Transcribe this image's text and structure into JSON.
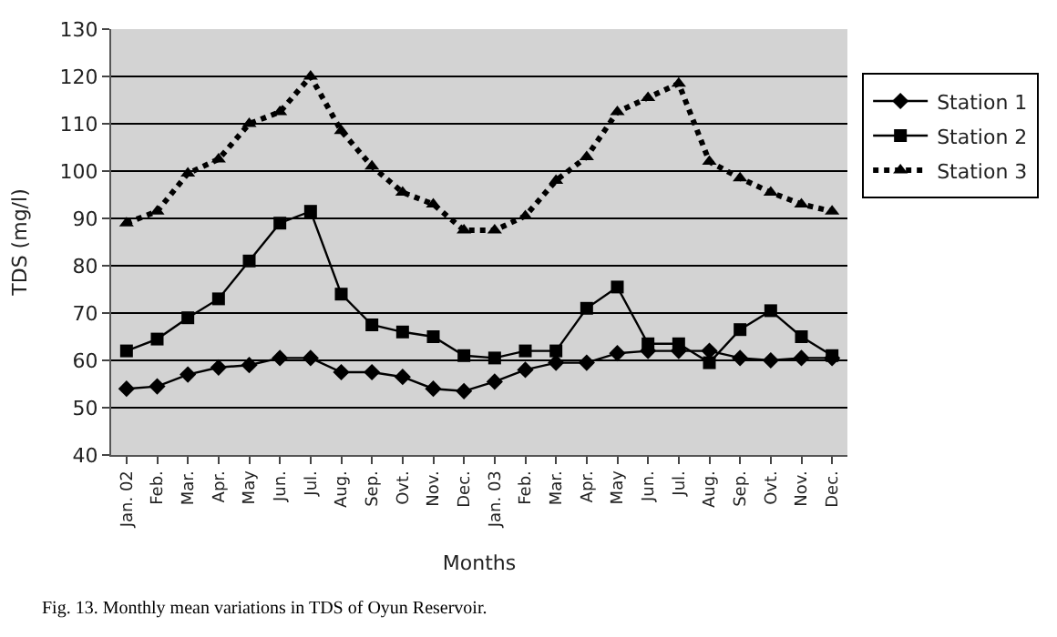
{
  "chart_data": {
    "type": "line",
    "xlabel": "Months",
    "ylabel": "TDS (mg/l)",
    "categories": [
      "Jan. 02",
      "Feb.",
      "Mar.",
      "Apr.",
      "May",
      "Jun.",
      "Jul.",
      "Aug.",
      "Sep.",
      "Ovt.",
      "Nov.",
      "Dec.",
      "Jan. 03",
      "Feb.",
      "Mar.",
      "Apr.",
      "May",
      "Jun.",
      "Jul.",
      "Aug.",
      "Sep.",
      "Ovt.",
      "Nov.",
      "Dec."
    ],
    "series": [
      {
        "name": "Station 1",
        "color": "#000000",
        "marker": "diamond",
        "line_style": "solid",
        "values": [
          54,
          54.5,
          57,
          58.5,
          59,
          60.5,
          60.5,
          57.5,
          57.5,
          56.5,
          54,
          53.5,
          55.5,
          58,
          59.5,
          59.5,
          61.5,
          62,
          62,
          62,
          60.5,
          60,
          60.5,
          60.5
        ]
      },
      {
        "name": "Station 2",
        "color": "#000000",
        "marker": "square",
        "line_style": "solid",
        "values": [
          62,
          64.5,
          69,
          73,
          81,
          89,
          91.5,
          74,
          67.5,
          66,
          65,
          61,
          60.5,
          62,
          62,
          71,
          75.5,
          63.5,
          63.5,
          59.5,
          66.5,
          70.5,
          65,
          61
        ]
      },
      {
        "name": "Station 3",
        "color": "#000000",
        "marker": "triangle",
        "line_style": "dotted",
        "values": [
          89,
          91.5,
          99.5,
          102.5,
          110,
          112.5,
          120,
          108.5,
          101,
          95.5,
          93,
          87.5,
          87.5,
          90.5,
          98,
          103,
          112.5,
          115.5,
          118.5,
          102,
          98.5,
          95.5,
          93,
          91.5
        ]
      }
    ],
    "ylim": [
      40,
      130
    ],
    "yticks": [
      40,
      50,
      60,
      70,
      80,
      90,
      100,
      110,
      120,
      130
    ],
    "grid": "y",
    "legend": "right",
    "annotations": [
      "Fig. 13. Monthly mean variations in TDS of Oyun Reservoir."
    ]
  }
}
